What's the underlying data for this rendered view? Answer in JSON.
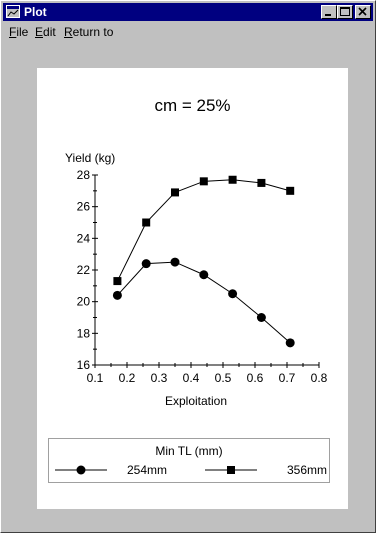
{
  "window": {
    "title": "Plot"
  },
  "menu": {
    "file": {
      "accel": "F",
      "rest": "ile"
    },
    "edit": {
      "accel": "E",
      "rest": "dit"
    },
    "return_to": {
      "accel": "R",
      "rest": "eturn to"
    }
  },
  "icons": {
    "app": "plot-app-icon",
    "minimize": "minimize-icon",
    "maximize": "maximize-icon",
    "close": "close-icon"
  },
  "chart_data": {
    "type": "line",
    "title": "cm = 25%",
    "ylabel": "Yield (kg)",
    "xlabel": "Exploitation",
    "xlim": [
      0.1,
      0.8
    ],
    "ylim": [
      16,
      28
    ],
    "x_ticks": [
      "0.1",
      "0.2",
      "0.3",
      "0.4",
      "0.5",
      "0.6",
      "0.7",
      "0.8"
    ],
    "y_ticks": [
      "16",
      "18",
      "20",
      "22",
      "24",
      "26",
      "28"
    ],
    "grid": false,
    "legend_title": "Min TL (mm)",
    "legend_position": "bottom",
    "series": [
      {
        "name": "254mm",
        "marker": "circle",
        "x": [
          0.17,
          0.26,
          0.35,
          0.44,
          0.53,
          0.62,
          0.71
        ],
        "y": [
          20.4,
          22.4,
          22.5,
          21.7,
          20.5,
          19.0,
          17.4
        ]
      },
      {
        "name": "356mm",
        "marker": "square",
        "x": [
          0.17,
          0.26,
          0.35,
          0.44,
          0.53,
          0.62,
          0.71
        ],
        "y": [
          21.3,
          25.0,
          26.9,
          27.6,
          27.7,
          27.5,
          27.0
        ]
      }
    ]
  }
}
